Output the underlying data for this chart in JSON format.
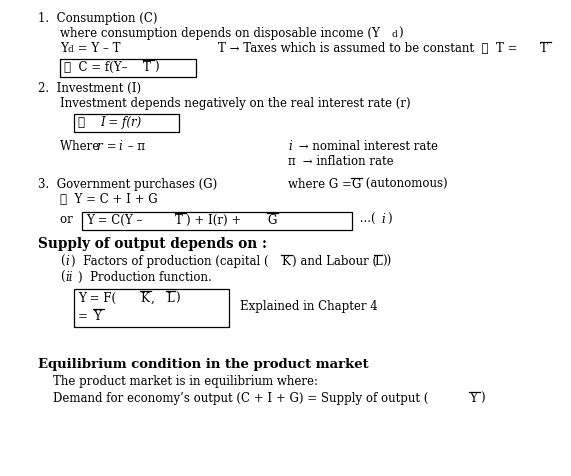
{
  "background_color": "#ffffff",
  "figsize": [
    5.71,
    4.77
  ],
  "dpi": 100
}
